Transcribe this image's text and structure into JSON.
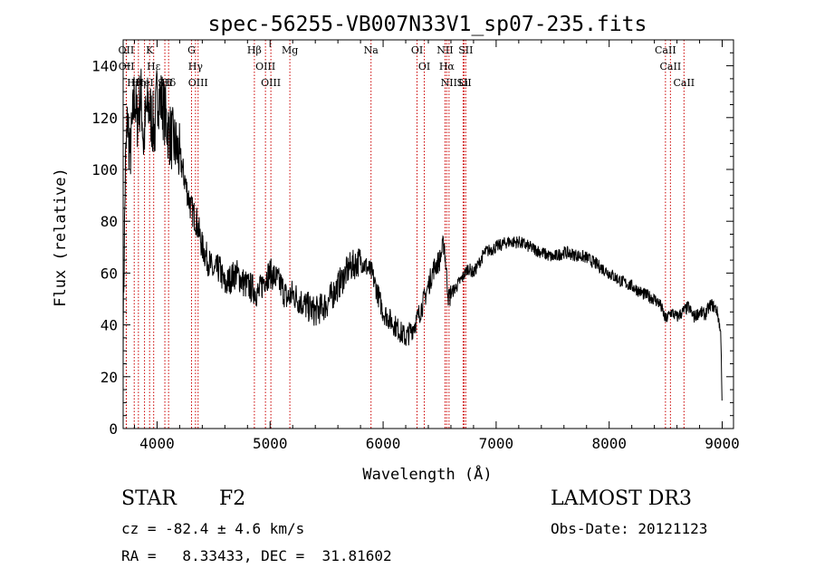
{
  "chart_data": {
    "type": "line",
    "title": "spec-56255-VB007N33V1_sp07-235.fits",
    "xlabel": "Wavelength (Å)",
    "ylabel": "Flux (relative)",
    "xlim": [
      3700,
      9100
    ],
    "ylim": [
      0,
      150
    ],
    "xticks": [
      4000,
      5000,
      6000,
      7000,
      8000,
      9000
    ],
    "yticks": [
      0,
      20,
      40,
      60,
      80,
      100,
      120,
      140
    ],
    "line_color": "#000000",
    "marker_color": "#cc0000",
    "spectrum": {
      "x": [
        3700,
        3720,
        3740,
        3760,
        3780,
        3800,
        3820,
        3840,
        3860,
        3880,
        3900,
        3920,
        3940,
        3960,
        3980,
        4000,
        4050,
        4100,
        4150,
        4200,
        4250,
        4300,
        4350,
        4400,
        4450,
        4500,
        4550,
        4600,
        4650,
        4700,
        4750,
        4800,
        4850,
        4900,
        4950,
        5000,
        5050,
        5100,
        5150,
        5200,
        5300,
        5400,
        5500,
        5600,
        5700,
        5800,
        5900,
        6000,
        6100,
        6200,
        6250,
        6300,
        6350,
        6400,
        6450,
        6500,
        6540,
        6560,
        6580,
        6600,
        6650,
        6700,
        6750,
        6800,
        6900,
        7000,
        7100,
        7200,
        7300,
        7400,
        7500,
        7600,
        7700,
        7800,
        7900,
        8000,
        8100,
        8200,
        8300,
        8400,
        8450,
        8500,
        8550,
        8600,
        8650,
        8700,
        8750,
        8800,
        8850,
        8900,
        8950,
        8970,
        8990,
        9000
      ],
      "y": [
        40,
        100,
        120,
        105,
        115,
        130,
        118,
        125,
        128,
        110,
        120,
        125,
        122,
        118,
        115,
        130,
        125,
        115,
        110,
        105,
        95,
        85,
        80,
        70,
        65,
        60,
        62,
        55,
        58,
        60,
        57,
        55,
        54,
        52,
        58,
        60,
        58,
        55,
        50,
        52,
        48,
        45,
        48,
        55,
        62,
        65,
        60,
        45,
        40,
        35,
        38,
        42,
        48,
        55,
        62,
        65,
        72,
        60,
        50,
        52,
        55,
        58,
        62,
        60,
        68,
        70,
        72,
        72,
        70,
        68,
        66,
        68,
        67,
        66,
        63,
        60,
        57,
        55,
        52,
        50,
        48,
        42,
        45,
        43,
        45,
        47,
        43,
        45,
        44,
        48,
        46,
        42,
        35,
        5
      ]
    },
    "lines": [
      {
        "label": "Hθ",
        "x": 3798
      },
      {
        "label": "OII",
        "x": 3727
      },
      {
        "label": "OII",
        "x": 3729
      },
      {
        "label": "Hη",
        "x": 3835
      },
      {
        "label": "K",
        "x": 3934
      },
      {
        "label": "HeI",
        "x": 3889
      },
      {
        "label": "Hε",
        "x": 3970
      },
      {
        "label": "SII",
        "x": 4069
      },
      {
        "label": "Hδ",
        "x": 4102
      },
      {
        "label": "OIII",
        "x": 4363
      },
      {
        "label": "Hγ",
        "x": 4340
      },
      {
        "label": "G",
        "x": 4305
      },
      {
        "label": "Hβ",
        "x": 4861
      },
      {
        "label": "OIII",
        "x": 5007
      },
      {
        "label": "OIII",
        "x": 4959
      },
      {
        "label": "Mg",
        "x": 5175
      },
      {
        "label": "Na",
        "x": 5893
      },
      {
        "label": "OI",
        "x": 6300
      },
      {
        "label": "OI",
        "x": 6364
      },
      {
        "label": "Hα",
        "x": 6563
      },
      {
        "label": "NII",
        "x": 6548
      },
      {
        "label": "NII",
        "x": 6583
      },
      {
        "label": "SII",
        "x": 6717
      },
      {
        "label": "Li",
        "x": 6708
      },
      {
        "label": "SII",
        "x": 6731
      },
      {
        "label": "CaII",
        "x": 8542
      },
      {
        "label": "CaII",
        "x": 8498
      },
      {
        "label": "CaII",
        "x": 8662
      }
    ]
  },
  "info": {
    "obj_class": "STAR",
    "subclass": "F2",
    "survey": "LAMOST DR3",
    "cz": "cz = -82.4 ± 4.6 km/s",
    "obs_date": "Obs-Date: 20121123",
    "coords": "RA =   8.33433, DEC =  31.81602"
  }
}
